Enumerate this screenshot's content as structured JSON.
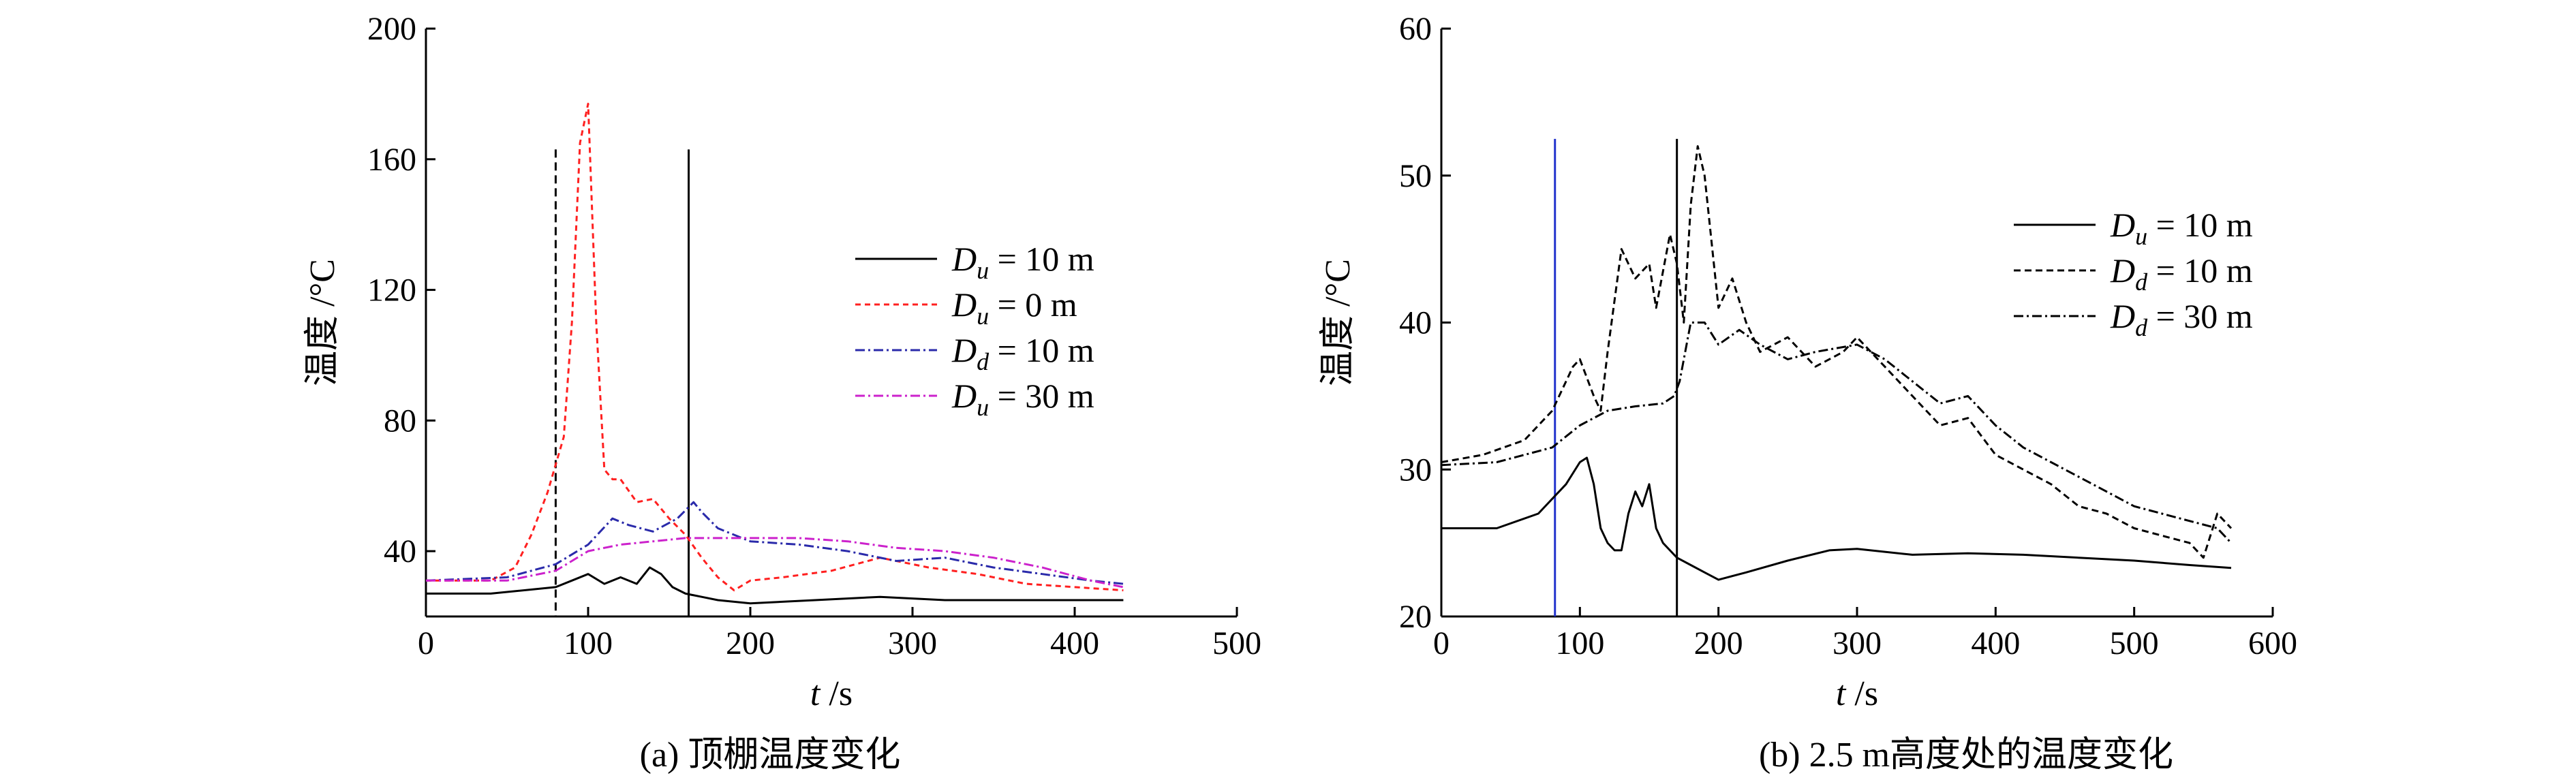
{
  "captions": {
    "a": "(a) 顶棚温度变化",
    "b": "(b) 2.5 m高度处的温度变化"
  },
  "chart_data": [
    {
      "id": "a",
      "type": "line",
      "title": "",
      "xlabel": "t /s",
      "ylabel": "温度 /°C",
      "xlim": [
        0,
        500
      ],
      "ylim": [
        20,
        200
      ],
      "xticks": [
        0,
        100,
        200,
        300,
        400,
        500
      ],
      "yticks": [
        40,
        80,
        120,
        160,
        200
      ],
      "grid": false,
      "legend_position": "center-right",
      "vlines": [
        {
          "x": 80,
          "style": "dashed",
          "color": "#000000",
          "y_top": 163
        },
        {
          "x": 162,
          "style": "solid",
          "color": "#000000",
          "y_top": 163
        }
      ],
      "series": [
        {
          "name": "D_u = 10 m",
          "legend": {
            "var": "D",
            "sub": "u",
            "text": " = 10 m"
          },
          "color": "#000000",
          "dash": "",
          "x": [
            0,
            40,
            80,
            90,
            100,
            110,
            120,
            130,
            138,
            145,
            152,
            160,
            170,
            180,
            200,
            240,
            280,
            320,
            360,
            400,
            430
          ],
          "y": [
            27,
            27,
            29,
            31,
            33,
            30,
            32,
            30,
            35,
            33,
            29,
            27,
            26,
            25,
            24,
            25,
            26,
            25,
            25,
            25,
            25
          ]
        },
        {
          "name": "D_u = 0 m",
          "legend": {
            "var": "D",
            "sub": "u",
            "text": " = 0 m"
          },
          "color": "#ff2020",
          "dash": "8,6",
          "x": [
            0,
            40,
            55,
            65,
            75,
            85,
            90,
            95,
            100,
            105,
            110,
            115,
            120,
            130,
            140,
            150,
            160,
            170,
            180,
            190,
            200,
            220,
            250,
            280,
            310,
            340,
            370,
            400,
            430
          ],
          "y": [
            31,
            31,
            35,
            45,
            58,
            75,
            110,
            165,
            177,
            110,
            65,
            62,
            62,
            55,
            56,
            50,
            45,
            38,
            32,
            28,
            31,
            32,
            34,
            38,
            35,
            33,
            30,
            29,
            28
          ]
        },
        {
          "name": "D_d = 10 m",
          "legend": {
            "var": "D",
            "sub": "d",
            "text": " = 10 m"
          },
          "color": "#2a2aaa",
          "dash": "14,5,3,5",
          "x": [
            0,
            50,
            80,
            100,
            115,
            125,
            140,
            155,
            165,
            170,
            180,
            200,
            230,
            260,
            290,
            320,
            350,
            380,
            410,
            430
          ],
          "y": [
            31,
            32,
            36,
            42,
            50,
            48,
            46,
            50,
            55,
            52,
            47,
            43,
            42,
            40,
            37,
            38,
            35,
            33,
            31,
            30
          ]
        },
        {
          "name": "D_u = 30 m",
          "legend": {
            "var": "D",
            "sub": "u",
            "text": " = 30 m"
          },
          "color": "#cc22cc",
          "dash": "14,5,3,5",
          "x": [
            0,
            50,
            80,
            100,
            120,
            140,
            160,
            180,
            200,
            230,
            260,
            290,
            320,
            350,
            380,
            410,
            430
          ],
          "y": [
            31,
            31,
            34,
            40,
            42,
            43,
            44,
            44,
            44,
            44,
            43,
            41,
            40,
            38,
            35,
            31,
            29
          ]
        }
      ]
    },
    {
      "id": "b",
      "type": "line",
      "title": "",
      "xlabel": "t /s",
      "ylabel": "温度 /°C",
      "xlim": [
        0,
        600
      ],
      "ylim": [
        20,
        60
      ],
      "xticks": [
        0,
        100,
        200,
        300,
        400,
        500,
        600
      ],
      "yticks": [
        20,
        30,
        40,
        50,
        60
      ],
      "grid": false,
      "legend_position": "top-right",
      "vlines": [
        {
          "x": 82,
          "style": "solid",
          "color": "#2233cc",
          "y_top": 52.5
        },
        {
          "x": 170,
          "style": "solid",
          "color": "#000000",
          "y_top": 52.5
        }
      ],
      "series": [
        {
          "name": "D_u = 10 m",
          "legend": {
            "var": "D",
            "sub": "u",
            "text": " = 10 m"
          },
          "color": "#000000",
          "dash": "",
          "x": [
            0,
            40,
            70,
            90,
            100,
            105,
            110,
            115,
            120,
            125,
            130,
            135,
            140,
            145,
            150,
            155,
            160,
            170,
            180,
            190,
            200,
            220,
            250,
            280,
            300,
            340,
            380,
            420,
            460,
            500,
            540,
            570
          ],
          "y": [
            26,
            26,
            27,
            29,
            30.5,
            30.8,
            29,
            26,
            25,
            24.5,
            24.5,
            27,
            28.5,
            27.5,
            29,
            26,
            25,
            24,
            23.5,
            23,
            22.5,
            23,
            23.8,
            24.5,
            24.6,
            24.2,
            24.3,
            24.2,
            24,
            23.8,
            23.5,
            23.3
          ]
        },
        {
          "name": "D_d = 10 m",
          "legend": {
            "var": "D",
            "sub": "d",
            "text": " = 10 m"
          },
          "color": "#000000",
          "dash": "10,6",
          "x": [
            0,
            30,
            60,
            80,
            95,
            100,
            110,
            115,
            120,
            130,
            140,
            150,
            155,
            165,
            170,
            175,
            180,
            185,
            190,
            200,
            210,
            220,
            230,
            250,
            270,
            290,
            300,
            320,
            340,
            360,
            380,
            400,
            420,
            440,
            460,
            480,
            500,
            520,
            540,
            550,
            560,
            570
          ],
          "y": [
            30.5,
            31,
            32,
            34,
            37,
            37.5,
            35,
            34,
            38,
            45,
            43,
            44,
            41,
            46,
            44,
            40,
            48,
            52,
            50,
            41,
            43,
            40,
            38,
            39,
            37,
            38,
            39,
            37,
            35,
            33,
            33.5,
            31,
            30,
            29,
            27.5,
            27,
            26,
            25.5,
            25,
            24,
            27,
            26
          ]
        },
        {
          "name": "D_d = 30 m",
          "legend": {
            "var": "D",
            "sub": "d",
            "text": " = 30 m"
          },
          "color": "#000000",
          "dash": "14,5,3,5",
          "x": [
            0,
            40,
            80,
            100,
            120,
            140,
            160,
            168,
            172,
            180,
            190,
            200,
            215,
            230,
            250,
            270,
            300,
            320,
            340,
            360,
            380,
            400,
            420,
            440,
            460,
            480,
            500,
            520,
            540,
            560,
            570
          ],
          "y": [
            30.3,
            30.5,
            31.5,
            33,
            34,
            34.3,
            34.5,
            35,
            36,
            40,
            40,
            38.5,
            39.5,
            38.5,
            37.5,
            38,
            38.5,
            37.5,
            36,
            34.5,
            35,
            33,
            31.5,
            30.5,
            29.5,
            28.5,
            27.5,
            27,
            26.5,
            26,
            25
          ]
        }
      ]
    }
  ]
}
